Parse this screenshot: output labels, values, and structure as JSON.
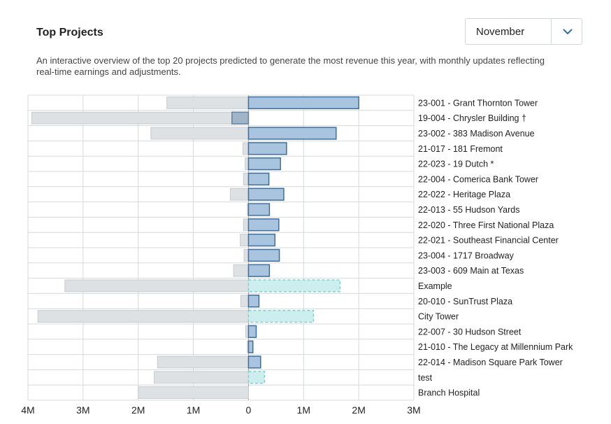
{
  "header": {
    "title": "Top Projects",
    "description": "An interactive overview of the top 20 projects predicted to generate the most revenue this year, with monthly updates reflecting real-time earnings and adjustments."
  },
  "month_select": {
    "selected": "November",
    "icon": "chevron-down-icon"
  },
  "colors": {
    "negative_bar": "#dde1e4",
    "positive_bar": "#a8c4de",
    "positive_stroke": "#3d6f9e",
    "dashed_bar": "#cdeeee",
    "dashed_stroke": "#7ed0d0",
    "grid": "#d5d9dc"
  },
  "chart_data": {
    "type": "bar",
    "orientation": "horizontal",
    "xlim": [
      -4000000,
      3000000
    ],
    "x_ticks": [
      {
        "value": -4000000,
        "label": "4M"
      },
      {
        "value": -3000000,
        "label": "3M"
      },
      {
        "value": -2000000,
        "label": "2M"
      },
      {
        "value": -1000000,
        "label": "1M"
      },
      {
        "value": 0,
        "label": "0"
      },
      {
        "value": 1000000,
        "label": "1M"
      },
      {
        "value": 2000000,
        "label": "2M"
      },
      {
        "value": 3000000,
        "label": "3M"
      }
    ],
    "grid": true,
    "rows": [
      {
        "label": "23-001 - Grant Thornton Tower",
        "negative": -1480000,
        "positive": 2000000,
        "dashed": false
      },
      {
        "label": "19-004 - Chrysler Building †",
        "negative": -3930000,
        "positive": -300000,
        "dashed": false
      },
      {
        "label": "23-002 - 383 Madison Avenue",
        "negative": -1770000,
        "positive": 1590000,
        "dashed": false
      },
      {
        "label": "21-017 - 181 Fremont",
        "negative": -100000,
        "positive": 690000,
        "dashed": false
      },
      {
        "label": "22-023 - 19 Dutch *",
        "negative": -60000,
        "positive": 580000,
        "dashed": false
      },
      {
        "label": "22-004 - Comerica Bank Tower",
        "negative": -90000,
        "positive": 370000,
        "dashed": false
      },
      {
        "label": "22-022 - Heritage Plaza",
        "negative": -330000,
        "positive": 640000,
        "dashed": false
      },
      {
        "label": "22-013 - 55 Hudson Yards",
        "negative": -20000,
        "positive": 380000,
        "dashed": false
      },
      {
        "label": "22-020 - Three First National Plaza",
        "negative": -90000,
        "positive": 550000,
        "dashed": false
      },
      {
        "label": "22-021 - Southeast Financial Center",
        "negative": -150000,
        "positive": 480000,
        "dashed": false
      },
      {
        "label": "23-004 - 1717 Broadway",
        "negative": -80000,
        "positive": 560000,
        "dashed": false
      },
      {
        "label": "23-003 - 609 Main at Texas",
        "negative": -270000,
        "positive": 380000,
        "dashed": false
      },
      {
        "label": "Example",
        "negative": -3330000,
        "positive": 1660000,
        "dashed": true
      },
      {
        "label": "20-010 - SunTrust Plaza",
        "negative": -140000,
        "positive": 190000,
        "dashed": false
      },
      {
        "label": "City Tower",
        "negative": -3820000,
        "positive": 1180000,
        "dashed": true
      },
      {
        "label": "22-007 - 30 Hudson Street",
        "negative": -50000,
        "positive": 140000,
        "dashed": false
      },
      {
        "label": "21-010 - The Legacy at Millennium Park",
        "negative": -20000,
        "positive": 80000,
        "dashed": false
      },
      {
        "label": "22-014 - Madison Square Park Tower",
        "negative": -1650000,
        "positive": 220000,
        "dashed": false
      },
      {
        "label": "test",
        "negative": -1710000,
        "positive": 290000,
        "dashed": true
      },
      {
        "label": "Branch Hospital",
        "negative": -2000000,
        "positive": 0,
        "dashed": false
      }
    ]
  }
}
